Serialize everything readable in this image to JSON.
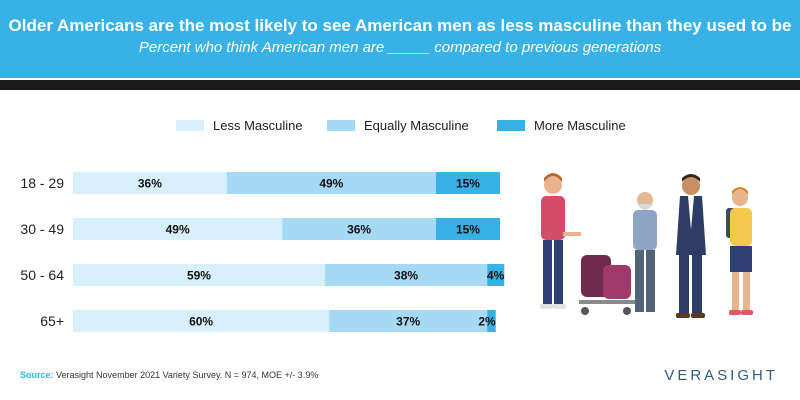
{
  "header": {
    "title": "Older Americans are the most likely to see American men as less masculine than they used to be",
    "subtitle": "Percent who think American men are _____ compared to previous generations"
  },
  "colors": {
    "header_bg": "#38b1e6",
    "less": "#d8f0fb",
    "equal": "#a6daf4",
    "more": "#38b1e6"
  },
  "chart_data": {
    "type": "bar",
    "orientation": "horizontal",
    "stacked": true,
    "title": "Percent who think American men are _____ compared to previous generations",
    "categories": [
      "18 - 29",
      "30 - 49",
      "50 - 64",
      "65+"
    ],
    "series": [
      {
        "name": "Less Masculine",
        "values": [
          36,
          49,
          59,
          60
        ],
        "labels": [
          "36%",
          "49%",
          "59%",
          "60%"
        ]
      },
      {
        "name": "Equally Masculine",
        "values": [
          49,
          36,
          38,
          37
        ],
        "labels": [
          "49%",
          "36%",
          "38%",
          "37%"
        ]
      },
      {
        "name": "More Masculine",
        "values": [
          15,
          15,
          4,
          2
        ],
        "labels": [
          "15%",
          "15%",
          "4%",
          "2%"
        ]
      }
    ],
    "xlim": [
      0,
      100
    ],
    "legend": "top",
    "grid": false
  },
  "footer": {
    "source_label": "Source:",
    "source_text": "Verasight November 2021 Variety Survey. N = 974, MOE +/- 3.9%",
    "brand": "VERASIGHT"
  }
}
